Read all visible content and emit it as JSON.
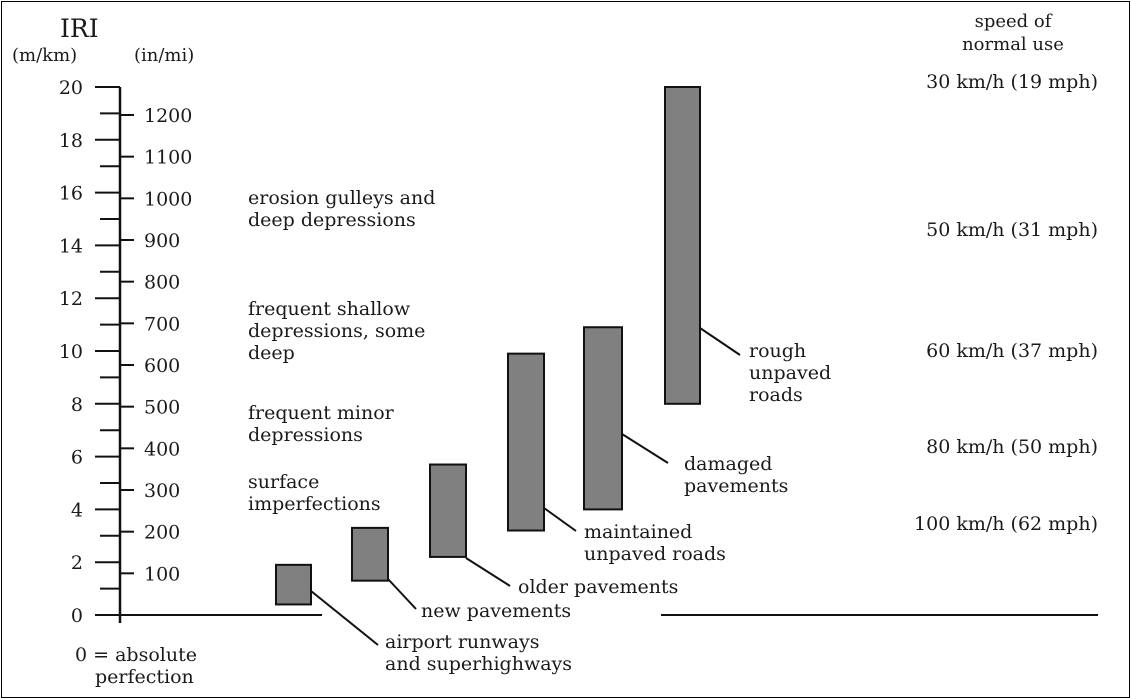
{
  "chart_data": {
    "type": "range-bar",
    "title": "IRI",
    "left_axis": {
      "unit": "(m/km)",
      "ticks": [
        "0",
        "2",
        "4",
        "6",
        "8",
        "10",
        "12",
        "14",
        "16",
        "18",
        "20"
      ],
      "range": [
        0,
        20
      ],
      "minor_step": 1
    },
    "right_axis": {
      "unit": "(in/mi)",
      "ticks": [
        "100",
        "200",
        "300",
        "400",
        "500",
        "600",
        "700",
        "800",
        "900",
        "1000",
        "1100",
        "1200"
      ],
      "range_in_per_mi": [
        0,
        1267
      ]
    },
    "speed_header": [
      "speed of",
      "normal use"
    ],
    "speeds": [
      {
        "label": "30 km/h (19 mph)",
        "iri": 20
      },
      {
        "label": "50 km/h (31 mph)",
        "iri": 14.6
      },
      {
        "label": "60 km/h (37 mph)",
        "iri": 10.1
      },
      {
        "label": "80 km/h (50 mph)",
        "iri": 6.1
      },
      {
        "label": "100 km/h (62 mph)",
        "iri": 3.2
      }
    ],
    "bar_color": "#808080",
    "bars": [
      {
        "name": [
          "airport runways",
          "and superhighways"
        ],
        "low": 0.4,
        "high": 1.9
      },
      {
        "name": [
          "new pavements"
        ],
        "low": 1.3,
        "high": 3.3
      },
      {
        "name": [
          "older pavements"
        ],
        "low": 2.2,
        "high": 5.7
      },
      {
        "name": [
          "maintained",
          "unpaved roads"
        ],
        "low": 3.2,
        "high": 9.9
      },
      {
        "name": [
          "damaged",
          "pavements"
        ],
        "low": 4.0,
        "high": 10.9
      },
      {
        "name": [
          "rough",
          "unpaved",
          "roads"
        ],
        "low": 8.0,
        "high": 20.0
      }
    ],
    "descriptions": [
      {
        "lines": [
          "erosion gulleys and",
          "deep depressions"
        ],
        "iri": 15.2
      },
      {
        "lines": [
          "frequent shallow",
          "depressions, some",
          "deep"
        ],
        "iri": 11.0
      },
      {
        "lines": [
          "frequent minor",
          "depressions"
        ],
        "iri": 7.2
      },
      {
        "lines": [
          "surface",
          "imperfections"
        ],
        "iri": 4.9
      }
    ],
    "zero_note": [
      "0 = absolute",
      "perfection"
    ]
  }
}
